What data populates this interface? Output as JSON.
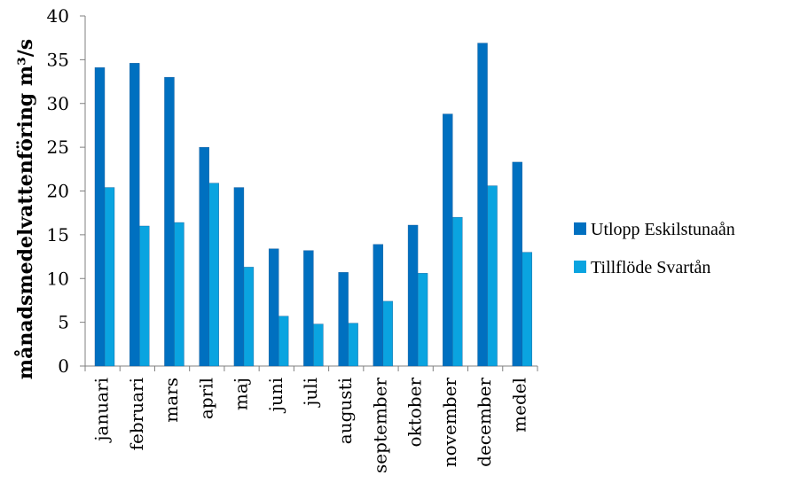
{
  "chart_data": {
    "type": "bar",
    "title": "",
    "xlabel": "",
    "ylabel": "månadsmedelvattenföring m³/s",
    "ylim": [
      0,
      40
    ],
    "yticks": [
      0,
      5,
      10,
      15,
      20,
      25,
      30,
      35,
      40
    ],
    "grid": false,
    "legend_position": "right",
    "categories": [
      "januari",
      "februari",
      "mars",
      "april",
      "maj",
      "juni",
      "juli",
      "augusti",
      "september",
      "oktober",
      "november",
      "december",
      "medel"
    ],
    "series": [
      {
        "name": "Utlopp Eskilstunaån",
        "color": "#0070C0",
        "values": [
          34.1,
          34.6,
          33.0,
          25.0,
          20.4,
          13.4,
          13.2,
          10.7,
          13.9,
          16.1,
          28.8,
          36.9,
          23.3
        ]
      },
      {
        "name": "Tillflöde Svartån",
        "color": "#0AA4E0",
        "values": [
          20.4,
          16.0,
          16.4,
          20.9,
          11.3,
          5.7,
          4.8,
          4.9,
          7.4,
          10.6,
          17.0,
          20.6,
          13.0
        ]
      }
    ]
  }
}
